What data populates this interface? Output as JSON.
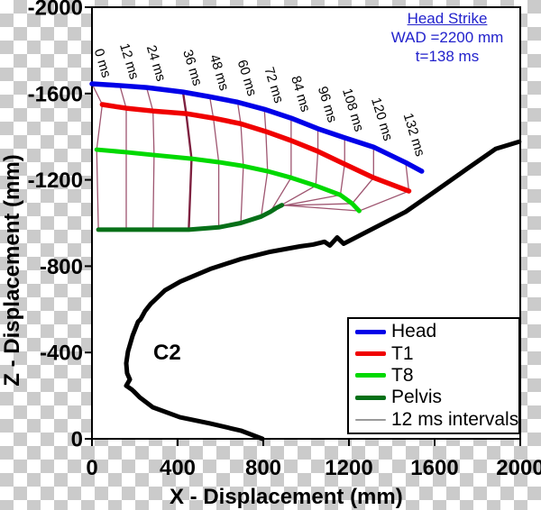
{
  "annotation": {
    "title": "Head Strike",
    "wad": "WAD =2200 mm",
    "time": "t=138 ms",
    "color": "#2222CC"
  },
  "c2_vehicle_label": "C2",
  "legend": {
    "items": [
      {
        "label": "Head",
        "color": "#0000E8",
        "thickness": 5
      },
      {
        "label": "T1",
        "color": "#F00000",
        "thickness": 5
      },
      {
        "label": "T8",
        "color": "#00D900",
        "thickness": 5
      },
      {
        "label": "Pelvis",
        "color": "#067018",
        "thickness": 5
      },
      {
        "label": "12 ms intervals",
        "color": "#9A9A9A",
        "thickness": 1.5
      }
    ]
  },
  "chart_data": {
    "type": "line",
    "title": "Head Strike trajectory plot",
    "xlabel": "X - Displacement (mm)",
    "ylabel": "Z - Displacement (mm)",
    "xlim": [
      0,
      2000
    ],
    "ylim": [
      -2000,
      0
    ],
    "y_axis_negative_up": true,
    "grid": false,
    "xticks": [
      "0",
      "400",
      "800",
      "1200",
      "1600",
      "2000"
    ],
    "xtick_values": [
      0,
      400,
      800,
      1200,
      1600,
      2000
    ],
    "yticks": [
      "-2000",
      "-1600",
      "-1200",
      "-800",
      "-400",
      "0"
    ],
    "ytick_values": [
      -2000,
      -1600,
      -1200,
      -800,
      -400,
      0
    ],
    "interval_ms": 12,
    "time_labels": [
      "0 ms",
      "12 ms",
      "24 ms",
      "36 ms",
      "48 ms",
      "60 ms",
      "72 ms",
      "84 ms",
      "96 ms",
      "108 ms",
      "120 ms",
      "132 ms"
    ],
    "interval_line_color": "#9E5570",
    "interval_line_width": 1.3,
    "interval_line_36ms_color": "#7E2140",
    "interval_line_36ms_width": 2.4,
    "series": [
      {
        "name": "Head",
        "color": "#0000E8",
        "width": 5.5,
        "points": [
          [
            0,
            -1645
          ],
          [
            130,
            -1637
          ],
          [
            255,
            -1628
          ],
          [
            425,
            -1607
          ],
          [
            550,
            -1585
          ],
          [
            680,
            -1560
          ],
          [
            805,
            -1527
          ],
          [
            930,
            -1486
          ],
          [
            1055,
            -1437
          ],
          [
            1180,
            -1395
          ],
          [
            1315,
            -1352
          ],
          [
            1465,
            -1280
          ],
          [
            1540,
            -1240
          ]
        ]
      },
      {
        "name": "T1",
        "color": "#F00000",
        "width": 5.5,
        "points": [
          [
            48,
            -1549
          ],
          [
            160,
            -1532
          ],
          [
            285,
            -1519
          ],
          [
            440,
            -1507
          ],
          [
            567,
            -1486
          ],
          [
            695,
            -1460
          ],
          [
            812,
            -1424
          ],
          [
            930,
            -1382
          ],
          [
            1055,
            -1332
          ],
          [
            1180,
            -1273
          ],
          [
            1315,
            -1210
          ],
          [
            1480,
            -1148
          ]
        ]
      },
      {
        "name": "T8",
        "color": "#00D900",
        "width": 5,
        "points": [
          [
            22,
            -1340
          ],
          [
            160,
            -1328
          ],
          [
            290,
            -1315
          ],
          [
            465,
            -1298
          ],
          [
            592,
            -1282
          ],
          [
            707,
            -1264
          ],
          [
            820,
            -1240
          ],
          [
            930,
            -1210
          ],
          [
            1045,
            -1173
          ],
          [
            1160,
            -1130
          ],
          [
            1215,
            -1090
          ],
          [
            1248,
            -1056
          ]
        ]
      },
      {
        "name": "Pelvis",
        "color": "#067018",
        "width": 5,
        "points": [
          [
            30,
            -969
          ],
          [
            160,
            -969
          ],
          [
            285,
            -969
          ],
          [
            452,
            -969
          ],
          [
            592,
            -980
          ],
          [
            695,
            -1000
          ],
          [
            790,
            -1030
          ],
          [
            833,
            -1052
          ],
          [
            858,
            -1068
          ],
          [
            875,
            -1077
          ],
          [
            883,
            -1081
          ],
          [
            887,
            -1083
          ]
        ]
      }
    ],
    "vehicle_profile": {
      "label": "C2",
      "color": "#000000",
      "width": 5,
      "points": [
        [
          796,
          0
        ],
        [
          695,
          -38
        ],
        [
          551,
          -71
        ],
        [
          411,
          -100
        ],
        [
          284,
          -146
        ],
        [
          223,
          -192
        ],
        [
          194,
          -221
        ],
        [
          185,
          -229
        ],
        [
          160,
          -246
        ],
        [
          177,
          -275
        ],
        [
          164,
          -304
        ],
        [
          160,
          -350
        ],
        [
          168,
          -404
        ],
        [
          190,
          -479
        ],
        [
          215,
          -542
        ],
        [
          227,
          -554
        ],
        [
          248,
          -592
        ],
        [
          274,
          -625
        ],
        [
          341,
          -688
        ],
        [
          413,
          -729
        ],
        [
          552,
          -787
        ],
        [
          695,
          -833
        ],
        [
          834,
          -867
        ],
        [
          973,
          -892
        ],
        [
          1032,
          -900
        ],
        [
          1086,
          -913
        ],
        [
          1111,
          -896
        ],
        [
          1145,
          -933
        ],
        [
          1175,
          -904
        ],
        [
          1465,
          -1052
        ],
        [
          1604,
          -1148
        ],
        [
          1747,
          -1248
        ],
        [
          1886,
          -1344
        ],
        [
          1995,
          -1377
        ]
      ]
    }
  }
}
